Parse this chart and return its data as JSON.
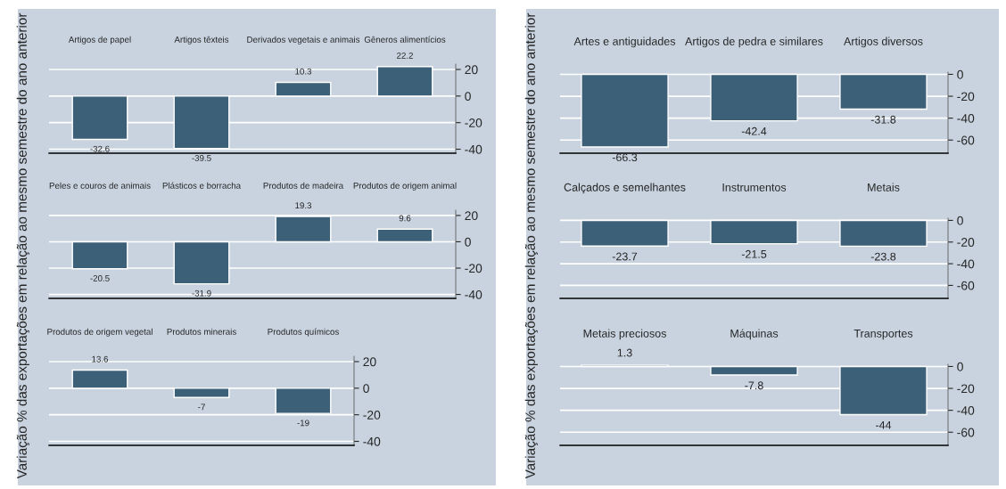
{
  "chart_data": [
    {
      "type": "bar",
      "categories": [
        "Artigos de papel",
        "Artigos têxteis",
        "Derivados vegetais e animais",
        "Gêneros alimentícios"
      ],
      "values": [
        -32.6,
        -39.5,
        10.3,
        22.2
      ],
      "color": "#3d6079",
      "ylim": [
        -43,
        24
      ],
      "yticks": [
        20,
        0,
        -20,
        -40
      ],
      "grid": "y",
      "data_labels": true
    },
    {
      "type": "bar",
      "ylabel": "Variação % das exportações em relação ao mesmo semestre do ano anterior",
      "categories": [
        "Peles e couros de animais",
        "Plásticos e borracha",
        "Produtos de madeira",
        "Produtos de origem animal"
      ],
      "values": [
        -20.5,
        -31.9,
        19.3,
        9.6
      ],
      "color": "#3d6079",
      "ylim": [
        -43,
        24
      ],
      "yticks": [
        20,
        0,
        -20,
        -40
      ],
      "grid": "y",
      "data_labels": true
    },
    {
      "type": "bar",
      "categories": [
        "Produtos de origem vegetal",
        "Produtos minerais",
        "Produtos químicos"
      ],
      "values": [
        13.6,
        -7,
        -19
      ],
      "color": "#3d6079",
      "ylim": [
        -43,
        24
      ],
      "yticks": [
        20,
        0,
        -20,
        -40
      ],
      "grid": "y",
      "data_labels": true
    },
    {
      "type": "bar",
      "categories": [
        "Artes e antiguidades",
        "Artigos de pedra e similares",
        "Artigos diversos"
      ],
      "values": [
        -66.3,
        -42.4,
        -31.8
      ],
      "color": "#3d6079",
      "ylim": [
        -72,
        2
      ],
      "yticks": [
        0,
        -20,
        -40,
        -60
      ],
      "grid": "y",
      "data_labels": true
    },
    {
      "type": "bar",
      "ylabel": "Variação % das exportações em relação ao mesmo semestre do ano anterior",
      "categories": [
        "Calçados e semelhantes",
        "Instrumentos",
        "Metais"
      ],
      "values": [
        -23.7,
        -21.5,
        -23.8
      ],
      "color": "#3d6079",
      "ylim": [
        -72,
        2
      ],
      "yticks": [
        0,
        -20,
        -40,
        -60
      ],
      "grid": "y",
      "data_labels": true
    },
    {
      "type": "bar",
      "categories": [
        "Metais preciosos",
        "Máquinas",
        "Transportes"
      ],
      "values": [
        1.3,
        -7.8,
        -44
      ],
      "color": "#3d6079",
      "ylim": [
        -72,
        2
      ],
      "yticks": [
        0,
        -20,
        -40,
        -60
      ],
      "grid": "y",
      "data_labels": true
    }
  ]
}
